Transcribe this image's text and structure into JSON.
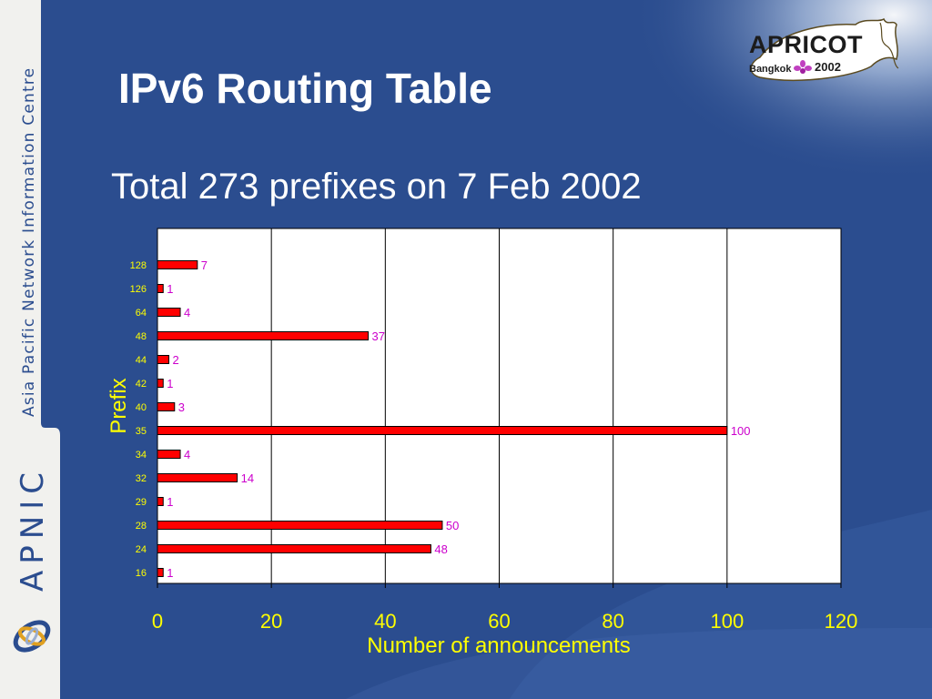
{
  "slide": {
    "title": "IPv6 Routing Table",
    "subtitle": "Total 273 prefixes on 7 Feb 2002"
  },
  "sidebar": {
    "org_name": "Asia Pacific Network Information Centre",
    "brand": "APNIC",
    "logo_icon": "apnic-swirl-icon"
  },
  "event_logo": {
    "name": "APRICOT",
    "city": "Bangkok",
    "year": "2002",
    "icon": "orchid-flower-icon"
  },
  "colors": {
    "background": "#2b4d8f",
    "title_text": "#ffffff",
    "axis_label_text": "#ffff00",
    "bar_fill": "#ff0000",
    "data_label": "#cc00cc"
  },
  "chart_data": {
    "type": "bar",
    "orientation": "horizontal",
    "categories": [
      "128",
      "126",
      "64",
      "48",
      "44",
      "42",
      "40",
      "35",
      "34",
      "32",
      "29",
      "28",
      "24",
      "16"
    ],
    "values": [
      7,
      1,
      4,
      37,
      2,
      1,
      3,
      100,
      4,
      14,
      1,
      50,
      48,
      1
    ],
    "data_labels": [
      "7",
      "1",
      "4",
      "37",
      "2",
      "1",
      "3",
      "100",
      "4",
      "14",
      "1",
      "50",
      "48",
      "1"
    ],
    "title": "",
    "xlabel": "Number of announcements",
    "ylabel": "Prefix",
    "xlim": [
      0,
      120
    ],
    "xticks": [
      0,
      20,
      40,
      60,
      80,
      100,
      120
    ],
    "xtick_labels": [
      "0",
      "20",
      "40",
      "60",
      "80",
      "100",
      "120"
    ],
    "grid": "vertical",
    "legend": "none"
  }
}
